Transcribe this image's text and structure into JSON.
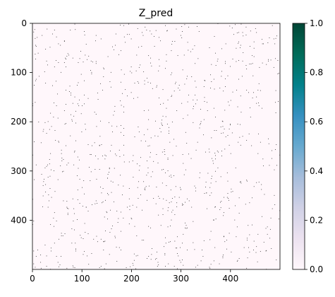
{
  "chart_data": {
    "type": "heatmap",
    "title": "Z_pred",
    "matrix_shape": [
      500,
      500
    ],
    "x_ticks": [
      0,
      100,
      200,
      300,
      400
    ],
    "y_ticks": [
      0,
      100,
      200,
      300,
      400
    ],
    "x_range": [
      0,
      500
    ],
    "y_range": [
      0,
      500
    ],
    "y_inverted": true,
    "value_range": [
      0.0,
      1.0
    ],
    "colorbar_ticks": [
      0.0,
      0.2,
      0.4,
      0.6,
      0.8,
      1.0
    ],
    "colorbar_tick_labels": [
      "0.0",
      "0.2",
      "0.4",
      "0.6",
      "0.8",
      "1.0"
    ],
    "colormap": "PuBuGn",
    "colormap_stops": [
      "#fff7fb",
      "#ece2f0",
      "#d0d1e6",
      "#a6bddb",
      "#67a9cf",
      "#3690c0",
      "#02818a",
      "#016c59",
      "#014636"
    ],
    "background_value": 0.0,
    "sparse_value": 1.0,
    "sparse_fraction_estimate": 0.004,
    "random_seed": 7,
    "grid": false
  }
}
